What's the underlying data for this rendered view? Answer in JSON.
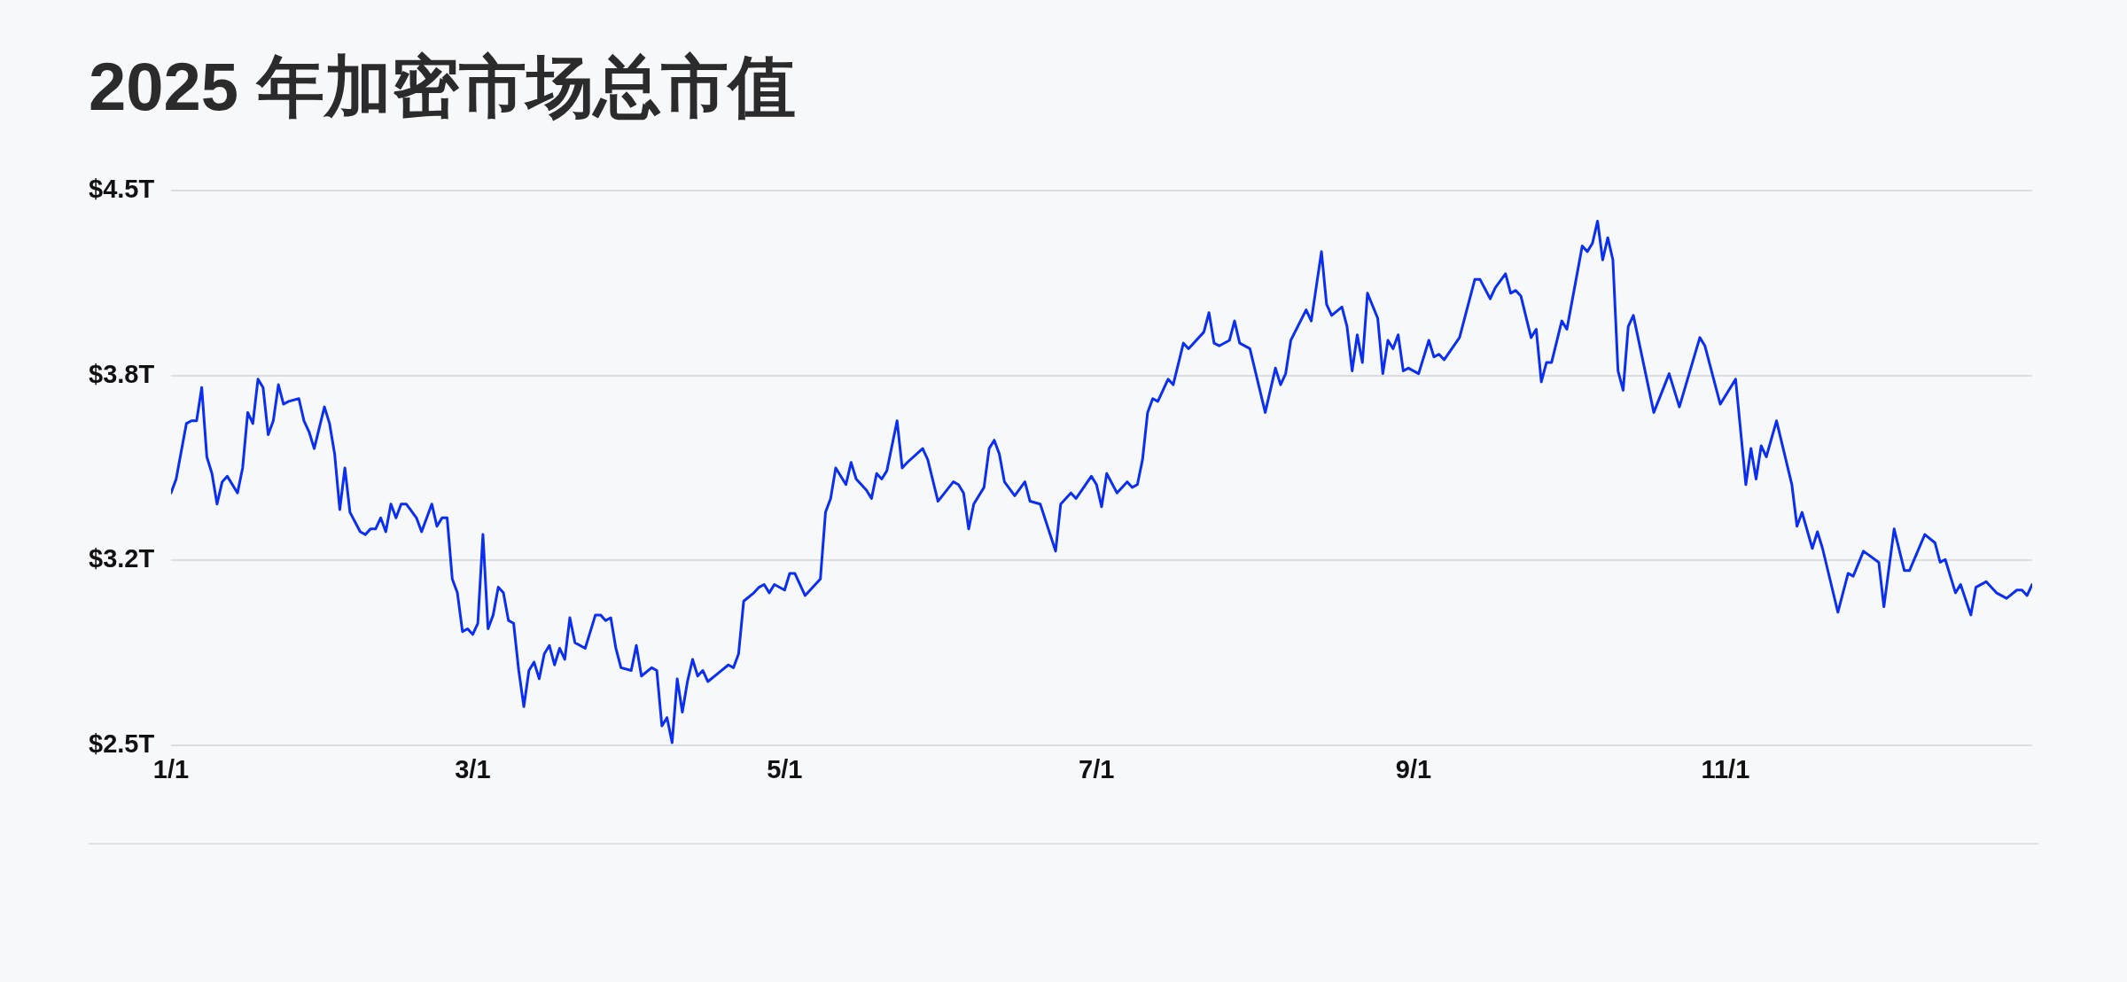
{
  "chart_data": {
    "type": "line",
    "title": "2025 年加密市场总市值",
    "x": [
      "--01-01",
      "--01-02",
      "--01-04",
      "--01-05",
      "--01-06",
      "--01-07",
      "--01-08",
      "--01-09",
      "--01-10",
      "--01-11",
      "--01-12",
      "--01-14",
      "--01-15",
      "--01-16",
      "--01-17",
      "--01-18",
      "--01-19",
      "--01-20",
      "--01-21",
      "--01-22",
      "--01-23",
      "--01-24",
      "--01-26",
      "--01-27",
      "--01-28",
      "--01-29",
      "--01-31",
      "--02-01",
      "--02-02",
      "--02-03",
      "--02-04",
      "--02-05",
      "--02-07",
      "--02-08",
      "--02-09",
      "--02-10",
      "--02-11",
      "--02-12",
      "--02-13",
      "--02-14",
      "--02-15",
      "--02-16",
      "--02-18",
      "--02-19",
      "--02-21",
      "--02-22",
      "--02-23",
      "--02-24",
      "--02-25",
      "--02-26",
      "--02-27",
      "--02-28",
      "--03-01",
      "--03-02",
      "--03-03",
      "--03-04",
      "--03-05",
      "--03-06",
      "--03-07",
      "--03-08",
      "--03-09",
      "--03-10",
      "--03-11",
      "--03-12",
      "--03-13",
      "--03-14",
      "--03-15",
      "--03-16",
      "--03-17",
      "--03-18",
      "--03-19",
      "--03-20",
      "--03-21",
      "--03-23",
      "--03-25",
      "--03-26",
      "--03-27",
      "--03-28",
      "--03-29",
      "--03-30",
      "--04-01",
      "--04-02",
      "--04-03",
      "--04-05",
      "--04-06",
      "--04-07",
      "--04-08",
      "--04-09",
      "--04-10",
      "--04-11",
      "--04-12",
      "--04-13",
      "--04-14",
      "--04-15",
      "--04-16",
      "--04-18",
      "--04-20",
      "--04-21",
      "--04-22",
      "--04-23",
      "--04-25",
      "--04-26",
      "--04-27",
      "--04-28",
      "--04-29",
      "--05-01",
      "--05-02",
      "--05-03",
      "--05-05",
      "--05-06",
      "--05-08",
      "--05-09",
      "--05-10",
      "--05-11",
      "--05-13",
      "--05-14",
      "--05-15",
      "--05-17",
      "--05-18",
      "--05-19",
      "--05-20",
      "--05-21",
      "--05-23",
      "--05-24",
      "--05-25",
      "--05-28",
      "--05-29",
      "--05-31",
      "--06-03",
      "--06-04",
      "--06-05",
      "--06-06",
      "--06-07",
      "--06-09",
      "--06-10",
      "--06-11",
      "--06-12",
      "--06-13",
      "--06-15",
      "--06-17",
      "--06-18",
      "--06-20",
      "--06-23",
      "--06-24",
      "--06-26",
      "--06-27",
      "--06-30",
      "--07-01",
      "--07-02",
      "--07-03",
      "--07-05",
      "--07-07",
      "--07-08",
      "--07-09",
      "--07-10",
      "--07-11",
      "--07-12",
      "--07-13",
      "--07-15",
      "--07-16",
      "--07-18",
      "--07-19",
      "--07-20",
      "--07-22",
      "--07-23",
      "--07-24",
      "--07-25",
      "--07-27",
      "--07-28",
      "--07-29",
      "--07-31",
      "--08-03",
      "--08-05",
      "--08-06",
      "--08-07",
      "--08-08",
      "--08-11",
      "--08-12",
      "--08-14",
      "--08-15",
      "--08-16",
      "--08-18",
      "--08-19",
      "--08-20",
      "--08-21",
      "--08-22",
      "--08-23",
      "--08-25",
      "--08-26",
      "--08-27",
      "--08-28",
      "--08-29",
      "--08-30",
      "--08-31",
      "--09-02",
      "--09-04",
      "--09-05",
      "--09-06",
      "--09-07",
      "--09-10",
      "--09-13",
      "--09-14",
      "--09-16",
      "--09-17",
      "--09-19",
      "--09-20",
      "--09-21",
      "--09-22",
      "--09-24",
      "--09-25",
      "--09-26",
      "--09-27",
      "--09-28",
      "--09-30",
      "--10-01",
      "--10-04",
      "--10-05",
      "--10-06",
      "--10-07",
      "--10-08",
      "--10-09",
      "--10-10",
      "--10-11",
      "--10-12",
      "--10-13",
      "--10-14",
      "--10-18",
      "--10-21",
      "--10-23",
      "--10-27",
      "--10-28",
      "--10-31",
      "--11-03",
      "--11-05",
      "--11-06",
      "--11-07",
      "--11-08",
      "--11-09",
      "--11-11",
      "--11-14",
      "--11-15",
      "--11-16",
      "--11-18",
      "--11-19",
      "--11-20",
      "--11-23",
      "--11-25",
      "--11-26",
      "--11-28",
      "--12-01",
      "--12-02",
      "--12-04",
      "--12-06",
      "--12-07",
      "--12-10",
      "--12-12",
      "--12-13",
      "--12-14",
      "--12-16",
      "--12-17",
      "--12-19",
      "--12-20",
      "--12-22",
      "--12-24",
      "--12-26",
      "--12-28",
      "--12-29",
      "--12-30",
      "--12-31"
    ],
    "values": [
      3.41,
      3.46,
      3.66,
      3.67,
      3.67,
      3.79,
      3.54,
      3.48,
      3.37,
      3.45,
      3.47,
      3.41,
      3.5,
      3.7,
      3.66,
      3.82,
      3.79,
      3.62,
      3.67,
      3.8,
      3.73,
      3.74,
      3.75,
      3.67,
      3.63,
      3.57,
      3.72,
      3.66,
      3.55,
      3.35,
      3.5,
      3.34,
      3.27,
      3.26,
      3.28,
      3.28,
      3.32,
      3.27,
      3.37,
      3.32,
      3.37,
      3.37,
      3.32,
      3.27,
      3.37,
      3.29,
      3.32,
      3.32,
      3.1,
      3.05,
      2.91,
      2.92,
      2.9,
      2.94,
      3.26,
      2.92,
      2.97,
      3.07,
      3.05,
      2.95,
      2.94,
      2.77,
      2.64,
      2.77,
      2.8,
      2.74,
      2.83,
      2.86,
      2.79,
      2.85,
      2.81,
      2.96,
      2.87,
      2.85,
      2.97,
      2.97,
      2.95,
      2.96,
      2.85,
      2.78,
      2.77,
      2.86,
      2.75,
      2.78,
      2.77,
      2.57,
      2.6,
      2.51,
      2.74,
      2.62,
      2.73,
      2.81,
      2.75,
      2.77,
      2.73,
      2.76,
      2.79,
      2.78,
      2.83,
      3.02,
      3.05,
      3.07,
      3.08,
      3.05,
      3.08,
      3.06,
      3.12,
      3.12,
      3.04,
      3.06,
      3.1,
      3.34,
      3.39,
      3.5,
      3.44,
      3.52,
      3.46,
      3.42,
      3.39,
      3.48,
      3.46,
      3.49,
      3.67,
      3.5,
      3.52,
      3.57,
      3.53,
      3.38,
      3.45,
      3.44,
      3.41,
      3.28,
      3.37,
      3.43,
      3.57,
      3.6,
      3.55,
      3.45,
      3.4,
      3.45,
      3.38,
      3.37,
      3.2,
      3.37,
      3.41,
      3.39,
      3.47,
      3.44,
      3.36,
      3.48,
      3.41,
      3.45,
      3.43,
      3.44,
      3.53,
      3.7,
      3.75,
      3.74,
      3.82,
      3.8,
      3.95,
      3.93,
      3.95,
      3.99,
      4.06,
      3.95,
      3.94,
      3.96,
      4.03,
      3.95,
      3.93,
      3.7,
      3.86,
      3.8,
      3.84,
      3.96,
      4.07,
      4.03,
      4.28,
      4.09,
      4.05,
      4.08,
      4.01,
      3.85,
      3.98,
      3.88,
      4.13,
      4.04,
      3.84,
      3.96,
      3.93,
      3.98,
      3.85,
      3.86,
      3.84,
      3.96,
      3.9,
      3.91,
      3.89,
      3.97,
      4.18,
      4.18,
      4.11,
      4.15,
      4.2,
      4.13,
      4.14,
      4.12,
      3.97,
      4.0,
      3.81,
      3.88,
      3.88,
      4.03,
      4.0,
      4.3,
      4.28,
      4.31,
      4.39,
      4.25,
      4.33,
      4.25,
      3.85,
      3.78,
      4.01,
      4.05,
      3.7,
      3.84,
      3.72,
      3.97,
      3.94,
      3.73,
      3.82,
      3.44,
      3.57,
      3.46,
      3.58,
      3.54,
      3.67,
      3.44,
      3.29,
      3.34,
      3.21,
      3.27,
      3.21,
      2.98,
      3.12,
      3.11,
      3.2,
      3.16,
      3.0,
      3.28,
      3.13,
      3.13,
      3.26,
      3.23,
      3.16,
      3.17,
      3.05,
      3.08,
      2.97,
      3.07,
      3.09,
      3.05,
      3.03,
      3.06,
      3.06,
      3.04,
      3.08
    ],
    "color": "#0b2ff2",
    "xlim": [
      "--01-01",
      "--12-31"
    ],
    "xticks": [
      {
        "value": "--01-01",
        "label": "1/1"
      },
      {
        "value": "--03-01",
        "label": "3/1"
      },
      {
        "value": "--05-01",
        "label": "5/1"
      },
      {
        "value": "--07-01",
        "label": "7/1"
      },
      {
        "value": "--09-01",
        "label": "9/1"
      },
      {
        "value": "--11-01",
        "label": "11/1"
      }
    ],
    "ylim": [
      2.5,
      4.5
    ],
    "yticks": [
      {
        "value": 2.5,
        "label": "$2.5T"
      },
      {
        "value": 3.1667,
        "label": "$3.2T"
      },
      {
        "value": 3.8333,
        "label": "$3.8T"
      },
      {
        "value": 4.5,
        "label": "$4.5T"
      }
    ],
    "grid": "y",
    "legend": false,
    "marker": "none",
    "line_style": "solid"
  }
}
